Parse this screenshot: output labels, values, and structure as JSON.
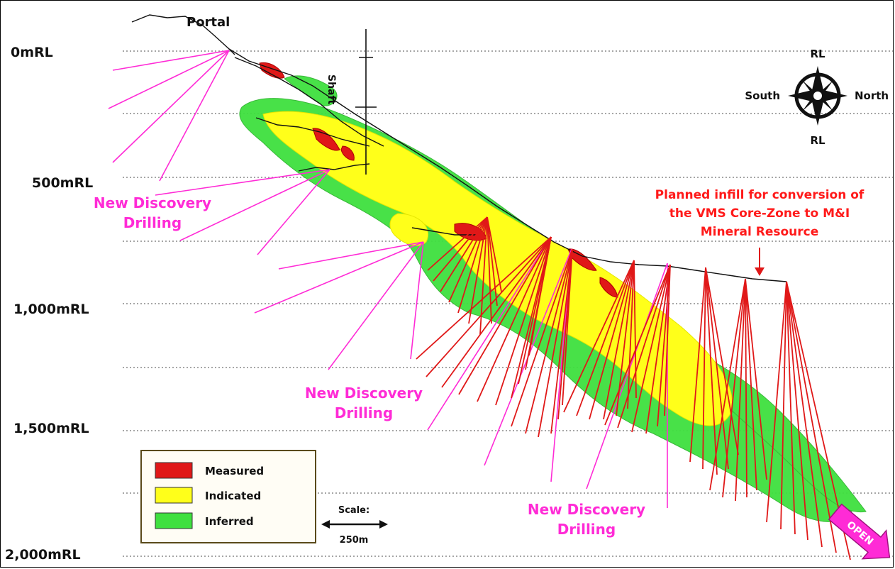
{
  "levels": [
    {
      "label": "0mRL"
    },
    {
      "label": "500mRL"
    },
    {
      "label": "1,000mRL"
    },
    {
      "label": "1,500mRL"
    },
    {
      "label": "2,000mRL"
    }
  ],
  "labels": {
    "portal": "Portal",
    "shaft": "Shaft",
    "discovery_line1": "New Discovery",
    "discovery_line2": "Drilling",
    "planned_line1": "Planned infill for conversion of",
    "planned_line2": "the VMS Core-Zone to M&I",
    "planned_line3": "Mineral Resource",
    "open": "OPEN"
  },
  "compass": {
    "top": "RL",
    "bottom": "RL",
    "left": "South",
    "right": "North"
  },
  "legend": {
    "items": [
      {
        "label": "Measured",
        "color": "#e01818"
      },
      {
        "label": "Indicated",
        "color": "#ffff1a"
      },
      {
        "label": "Inferred",
        "color": "#3fe03f"
      }
    ]
  },
  "scale": {
    "title": "Scale:",
    "value": "250m"
  },
  "colors": {
    "measured": "#e01818",
    "indicated": "#ffff1a",
    "inferred": "#3fe03f",
    "discovery": "#ff2bd6",
    "infill": "#e01818"
  }
}
